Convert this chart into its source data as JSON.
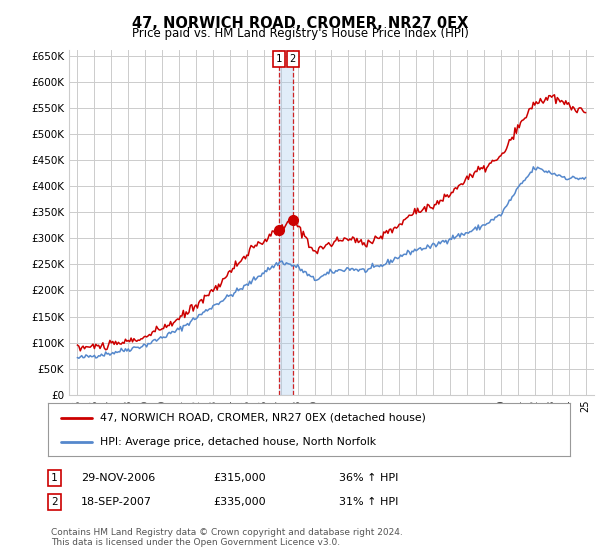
{
  "title": "47, NORWICH ROAD, CROMER, NR27 0EX",
  "subtitle": "Price paid vs. HM Land Registry's House Price Index (HPI)",
  "ylim": [
    0,
    660000
  ],
  "yticks": [
    0,
    50000,
    100000,
    150000,
    200000,
    250000,
    300000,
    350000,
    400000,
    450000,
    500000,
    550000,
    600000,
    650000
  ],
  "background_color": "#ffffff",
  "grid_color": "#cccccc",
  "line1_color": "#cc0000",
  "line2_color": "#5588cc",
  "sale1_date_num": 2006.91,
  "sale1_price": 315000,
  "sale2_date_num": 2007.71,
  "sale2_price": 335000,
  "legend1_label": "47, NORWICH ROAD, CROMER, NR27 0EX (detached house)",
  "legend2_label": "HPI: Average price, detached house, North Norfolk",
  "sale1_text": "29-NOV-2006",
  "sale1_amount": "£315,000",
  "sale1_hpi": "36% ↑ HPI",
  "sale2_text": "18-SEP-2007",
  "sale2_amount": "£335,000",
  "sale2_hpi": "31% ↑ HPI",
  "footer": "Contains HM Land Registry data © Crown copyright and database right 2024.\nThis data is licensed under the Open Government Licence v3.0.",
  "hpi_anchors_years": [
    1995,
    1997,
    1999,
    2001,
    2003,
    2005,
    2006,
    2007,
    2008,
    2009,
    2010,
    2011,
    2012,
    2013,
    2014,
    2015,
    2016,
    2017,
    2018,
    2019,
    2020,
    2021,
    2022,
    2023,
    2024,
    2025
  ],
  "hpi_anchors_vals": [
    70000,
    80000,
    95000,
    125000,
    170000,
    210000,
    235000,
    255000,
    245000,
    220000,
    235000,
    242000,
    238000,
    248000,
    265000,
    278000,
    285000,
    300000,
    310000,
    325000,
    345000,
    395000,
    435000,
    425000,
    415000,
    415000
  ],
  "prop_anchors_years": [
    1995,
    1997,
    1999,
    2001,
    2003,
    2005,
    2006,
    2006.91,
    2007.71,
    2008.0,
    2009,
    2010,
    2011,
    2012,
    2013,
    2014,
    2015,
    2016,
    2017,
    2018,
    2019,
    2020,
    2021,
    2022,
    2023,
    2024,
    2025
  ],
  "prop_anchors_vals": [
    90000,
    95000,
    110000,
    145000,
    200000,
    270000,
    295000,
    315000,
    335000,
    325000,
    275000,
    290000,
    300000,
    290000,
    305000,
    325000,
    355000,
    360000,
    385000,
    415000,
    435000,
    455000,
    510000,
    560000,
    570000,
    555000,
    540000
  ]
}
